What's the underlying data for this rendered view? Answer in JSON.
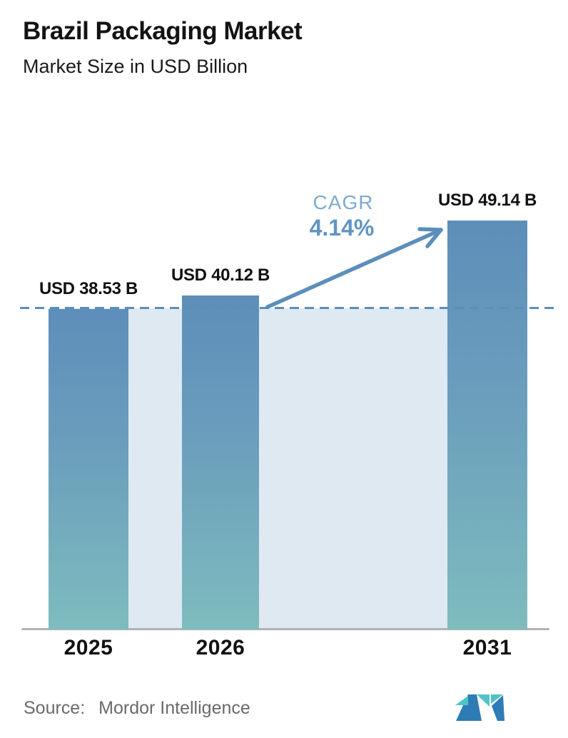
{
  "header": {
    "title": "Brazil Packaging Market",
    "subtitle": "Market Size in USD Billion"
  },
  "chart_data": {
    "type": "bar",
    "categories": [
      "2025",
      "2026",
      "2031"
    ],
    "values": [
      38.53,
      40.12,
      49.14
    ],
    "value_labels": [
      "USD 38.53 B",
      "USD 40.12 B",
      "USD 49.14 B"
    ],
    "title": "Brazil Packaging Market",
    "subtitle": "Market Size in USD Billion",
    "unit": "USD Billion",
    "ylim": [
      0,
      52
    ],
    "grid": false,
    "legend": false,
    "annotations": {
      "cagr_label": "CAGR",
      "cagr_value": "4.14%",
      "dashed_reference_level": 38.53,
      "arrow": "from 2026 bar to 2031 bar"
    },
    "colors": {
      "bar_gradient_top": "#5d8eba",
      "bar_gradient_bottom": "#7ebcbe",
      "background_panel": "#dfe9f2",
      "dash_and_arrow": "#5c8eba",
      "cagr_label_text": "#7fa9d0",
      "cagr_value_text": "#6095c2",
      "axis_line": "#b2b2b5"
    }
  },
  "footer": {
    "source_label": "Source:",
    "source_name": "Mordor Intelligence",
    "logo_name": "mordor-intelligence-logo",
    "logo_colors": {
      "blue": "#2e7cb5",
      "teal": "#4fc4c7"
    }
  }
}
